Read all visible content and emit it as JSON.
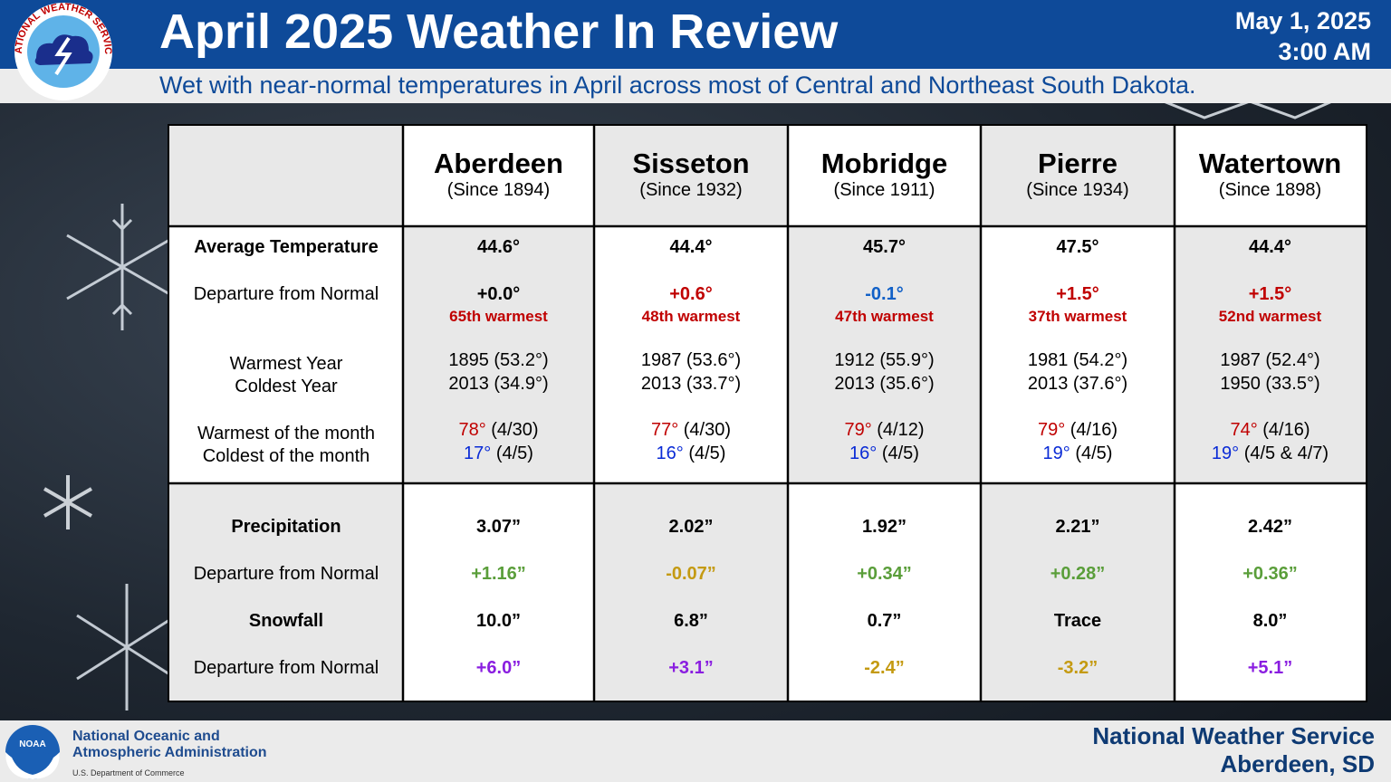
{
  "header": {
    "title": "April 2025 Weather In Review",
    "date": "May 1, 2025",
    "time": "3:00 AM",
    "subtitle": "Wet with near-normal temperatures in April across most of Central and Northeast South Dakota.",
    "logo_text": "NATIONAL WEATHER SERVICE"
  },
  "row_labels": {
    "avg_temp": "Average Temperature",
    "temp_departure": "Departure from Normal",
    "warmest_year": "Warmest Year",
    "coldest_year": "Coldest Year",
    "warmest_month": "Warmest of the month",
    "coldest_month": "Coldest of the month",
    "precip": "Precipitation",
    "precip_departure": "Departure from Normal",
    "snowfall": "Snowfall",
    "snow_departure": "Departure from Normal"
  },
  "stations": [
    {
      "name": "Aberdeen",
      "since": "(Since 1894)",
      "avg_temp": "44.6°",
      "temp_departure": "+0.0°",
      "rank": "65th warmest",
      "warmest_year": "1895 (53.2°)",
      "coldest_year": "2013 (34.9°)",
      "warmest_val": "78°",
      "warmest_date": " (4/30)",
      "coldest_val": "17°",
      "coldest_date": " (4/5)",
      "precip": "3.07”",
      "precip_departure": "+1.16”",
      "snowfall": "10.0”",
      "snow_departure": "+6.0”"
    },
    {
      "name": "Sisseton",
      "since": "(Since 1932)",
      "avg_temp": "44.4°",
      "temp_departure": "+0.6°",
      "rank": "48th warmest",
      "warmest_year": "1987 (53.6°)",
      "coldest_year": "2013 (33.7°)",
      "warmest_val": "77°",
      "warmest_date": " (4/30)",
      "coldest_val": "16°",
      "coldest_date": " (4/5)",
      "precip": "2.02”",
      "precip_departure": "-0.07”",
      "snowfall": "6.8”",
      "snow_departure": "+3.1”"
    },
    {
      "name": "Mobridge",
      "since": "(Since 1911)",
      "avg_temp": "45.7°",
      "temp_departure": "-0.1°",
      "rank": "47th warmest",
      "warmest_year": "1912 (55.9°)",
      "coldest_year": "2013 (35.6°)",
      "warmest_val": "79°",
      "warmest_date": " (4/12)",
      "coldest_val": "16°",
      "coldest_date": " (4/5)",
      "precip": "1.92”",
      "precip_departure": "+0.34”",
      "snowfall": "0.7”",
      "snow_departure": "-2.4”"
    },
    {
      "name": "Pierre",
      "since": "(Since 1934)",
      "avg_temp": "47.5°",
      "temp_departure": "+1.5°",
      "rank": "37th warmest",
      "warmest_year": "1981 (54.2°)",
      "coldest_year": "2013 (37.6°)",
      "warmest_val": "79°",
      "warmest_date": " (4/16)",
      "coldest_val": "19°",
      "coldest_date": " (4/5)",
      "precip": "2.21”",
      "precip_departure": "+0.28”",
      "snowfall": "Trace",
      "snow_departure": "-3.2”"
    },
    {
      "name": "Watertown",
      "since": "(Since 1898)",
      "avg_temp": "44.4°",
      "temp_departure": "+1.5°",
      "rank": "52nd warmest",
      "warmest_year": "1987 (52.4°)",
      "coldest_year": "1950 (33.5°)",
      "warmest_val": "74°",
      "warmest_date": " (4/16)",
      "coldest_val": "19°",
      "coldest_date": " (4/5 & 4/7)",
      "precip": "2.42”",
      "precip_departure": "+0.36”",
      "snowfall": "8.0”",
      "snow_departure": "+5.1”"
    }
  ],
  "colors": {
    "header_blue": "#0e4a99",
    "warm_red": "#c00000",
    "cold_blue": "#0a2bd6",
    "wet_green": "#5a9e3a",
    "dry_gold": "#c49a12",
    "snow_purple": "#8a1ee0"
  },
  "footer": {
    "noaa_line1": "National Oceanic and",
    "noaa_line2": "Atmospheric Administration",
    "noaa_dept": "U.S. Department of Commerce",
    "noaa_badge": "NOAA",
    "office_line1": "National Weather Service",
    "office_line2": "Aberdeen, SD"
  },
  "icons": [
    "nws-logo-icon",
    "noaa-logo-icon",
    "snowflake-icon"
  ]
}
